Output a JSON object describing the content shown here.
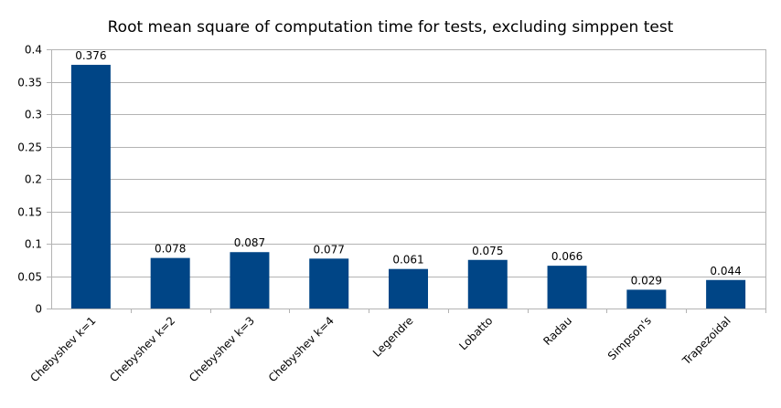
{
  "chart_data": {
    "type": "bar",
    "title": "Root mean square of computation time for tests, excluding simppen test",
    "xlabel": "",
    "ylabel": "",
    "categories": [
      "Chebyshev k=1",
      "Chebyshev k=2",
      "Chebyshev k=3",
      "Chebyshev k=4",
      "Legendre",
      "Lobatto",
      "Radau",
      "Simpson's",
      "Trapezoidal"
    ],
    "values": [
      0.376,
      0.078,
      0.087,
      0.077,
      0.061,
      0.075,
      0.066,
      0.029,
      0.044
    ],
    "data_labels": [
      "0.376",
      "0.078",
      "0.087",
      "0.077",
      "0.061",
      "0.075",
      "0.066",
      "0.029",
      "0.044"
    ],
    "ylim": [
      0,
      0.4
    ],
    "yticks": [
      0,
      0.05,
      0.1,
      0.15,
      0.2,
      0.25,
      0.3,
      0.35,
      0.4
    ],
    "ytick_labels": [
      "0",
      "0.05",
      "0.1",
      "0.15",
      "0.2",
      "0.25",
      "0.3",
      "0.35",
      "0.4"
    ],
    "grid": true,
    "legend": "none",
    "bar_color": "#004586",
    "grid_color": "#b3b3b3"
  }
}
